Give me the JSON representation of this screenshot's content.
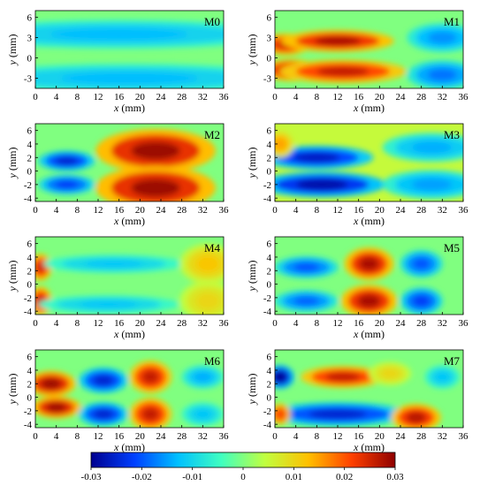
{
  "chart_data": {
    "type": "heatmap",
    "panel_labels": [
      "M0",
      "M1",
      "M2",
      "M3",
      "M4",
      "M5",
      "M6",
      "M7"
    ],
    "xlabel": "x (mm)",
    "ylabel": "y (mm)",
    "x_ticks": [
      0,
      4,
      8,
      12,
      16,
      20,
      24,
      28,
      32,
      36
    ],
    "y_ticks_set_a": [
      6,
      3,
      0,
      -3
    ],
    "y_ticks_set_b": [
      6,
      4,
      2,
      0,
      -2,
      -4
    ],
    "xlim": [
      0,
      36
    ],
    "ylim": [
      -4.5,
      7
    ],
    "colorbar": {
      "ticks": [
        -0.03,
        -0.02,
        -0.01,
        0,
        0.01,
        0.02,
        0.03
      ],
      "tick_labels": [
        "-0.03",
        "-0.02",
        "-0.01",
        "0",
        "0.01",
        "0.02",
        "0.03"
      ],
      "range": [
        -0.03,
        0.03
      ],
      "colormap": [
        "#00008f",
        "#0040ff",
        "#00c0ff",
        "#40ffc0",
        "#c0ff40",
        "#ffc000",
        "#ff4000",
        "#8f0000"
      ]
    },
    "panels": [
      {
        "label": "M0",
        "background": 0.0,
        "blobs": [
          {
            "x": 16,
            "y": 3.5,
            "rx": 24,
            "ry": 1.6,
            "v": -0.013
          },
          {
            "x": 18,
            "y": -3.0,
            "rx": 24,
            "ry": 1.6,
            "v": -0.013
          }
        ]
      },
      {
        "label": "M1",
        "background": 0.0,
        "blobs": [
          {
            "x": 2,
            "y": 2.0,
            "rx": 3.5,
            "ry": 1.2,
            "v": 0.025
          },
          {
            "x": 12,
            "y": 2.5,
            "rx": 8,
            "ry": 1.2,
            "v": 0.028
          },
          {
            "x": 3,
            "y": -1.8,
            "rx": 4,
            "ry": 1.2,
            "v": 0.028
          },
          {
            "x": 13,
            "y": -2.0,
            "rx": 9,
            "ry": 1.3,
            "v": 0.026
          },
          {
            "x": 32,
            "y": 3.0,
            "rx": 5,
            "ry": 1.6,
            "v": -0.016
          },
          {
            "x": 32,
            "y": -2.5,
            "rx": 5,
            "ry": 1.6,
            "v": -0.018
          }
        ]
      },
      {
        "label": "M2",
        "background": 0.0,
        "blobs": [
          {
            "x": 6,
            "y": 1.5,
            "rx": 4,
            "ry": 1.1,
            "v": -0.025
          },
          {
            "x": 6,
            "y": -2.0,
            "rx": 4,
            "ry": 1.1,
            "v": -0.022
          },
          {
            "x": 23,
            "y": 3.0,
            "rx": 8.5,
            "ry": 2.4,
            "v": 0.029
          },
          {
            "x": 23,
            "y": -2.5,
            "rx": 8.5,
            "ry": 2.4,
            "v": 0.029
          }
        ]
      },
      {
        "label": "M3",
        "background": 0.005,
        "blobs": [
          {
            "x": 8,
            "y": 2.0,
            "rx": 8,
            "ry": 1.3,
            "v": -0.026
          },
          {
            "x": 9,
            "y": -2.0,
            "rx": 9,
            "ry": 1.4,
            "v": -0.028
          },
          {
            "x": 30,
            "y": 3.5,
            "rx": 7,
            "ry": 1.6,
            "v": -0.014
          },
          {
            "x": 30,
            "y": -2.0,
            "rx": 7,
            "ry": 1.6,
            "v": -0.015
          },
          {
            "x": 1,
            "y": 4.0,
            "rx": 2,
            "ry": 1.5,
            "v": 0.015
          }
        ]
      },
      {
        "label": "M4",
        "background": 0.0,
        "blobs": [
          {
            "x": 1,
            "y": 2.5,
            "rx": 1.6,
            "ry": 1.5,
            "v": 0.025
          },
          {
            "x": 1,
            "y": -2.5,
            "rx": 1.6,
            "ry": 1.6,
            "v": 0.026
          },
          {
            "x": 15,
            "y": 3.0,
            "rx": 10,
            "ry": 1.0,
            "v": -0.012
          },
          {
            "x": 14,
            "y": -3.0,
            "rx": 10,
            "ry": 1.0,
            "v": -0.012
          },
          {
            "x": 33,
            "y": 3.0,
            "rx": 4,
            "ry": 2.2,
            "v": 0.012
          },
          {
            "x": 33,
            "y": -2.5,
            "rx": 4,
            "ry": 2.2,
            "v": 0.01
          }
        ]
      },
      {
        "label": "M5",
        "background": 0.0,
        "blobs": [
          {
            "x": 6,
            "y": 2.5,
            "rx": 4.5,
            "ry": 1.2,
            "v": -0.02
          },
          {
            "x": 6,
            "y": -2.5,
            "rx": 4.5,
            "ry": 1.2,
            "v": -0.019
          },
          {
            "x": 18,
            "y": 3.0,
            "rx": 3.5,
            "ry": 1.8,
            "v": 0.028
          },
          {
            "x": 18,
            "y": -2.5,
            "rx": 4,
            "ry": 1.8,
            "v": 0.028
          },
          {
            "x": 28,
            "y": 3.0,
            "rx": 3,
            "ry": 1.5,
            "v": -0.02
          },
          {
            "x": 28,
            "y": -2.5,
            "rx": 3,
            "ry": 1.5,
            "v": -0.022
          }
        ]
      },
      {
        "label": "M6",
        "background": 0.0,
        "blobs": [
          {
            "x": 3,
            "y": 2.0,
            "rx": 3.5,
            "ry": 1.4,
            "v": 0.029
          },
          {
            "x": 4,
            "y": -1.5,
            "rx": 3.5,
            "ry": 1.2,
            "v": 0.029
          },
          {
            "x": 13,
            "y": 2.5,
            "rx": 3.5,
            "ry": 1.4,
            "v": -0.025
          },
          {
            "x": 13,
            "y": -2.5,
            "rx": 3.5,
            "ry": 1.3,
            "v": -0.025
          },
          {
            "x": 22,
            "y": 3.0,
            "rx": 3,
            "ry": 1.8,
            "v": 0.026
          },
          {
            "x": 22,
            "y": -2.5,
            "rx": 3,
            "ry": 1.8,
            "v": 0.026
          },
          {
            "x": 32,
            "y": 3.0,
            "rx": 3,
            "ry": 1.3,
            "v": -0.014
          },
          {
            "x": 32,
            "y": -2.5,
            "rx": 3,
            "ry": 1.3,
            "v": -0.012
          }
        ]
      },
      {
        "label": "M7",
        "background": 0.0,
        "blobs": [
          {
            "x": 1,
            "y": 3.0,
            "rx": 2,
            "ry": 1.3,
            "v": -0.03
          },
          {
            "x": 13,
            "y": 3.0,
            "rx": 6,
            "ry": 1.2,
            "v": 0.026
          },
          {
            "x": 22,
            "y": 3.5,
            "rx": 3,
            "ry": 1.3,
            "v": 0.01
          },
          {
            "x": 12,
            "y": -2.5,
            "rx": 10,
            "ry": 1.3,
            "v": -0.025
          },
          {
            "x": 1,
            "y": -2.5,
            "rx": 1.5,
            "ry": 1.2,
            "v": 0.022
          },
          {
            "x": 27,
            "y": -3.0,
            "rx": 3.5,
            "ry": 1.5,
            "v": 0.027
          },
          {
            "x": 32,
            "y": 3.0,
            "rx": 2.5,
            "ry": 1.3,
            "v": -0.012
          }
        ]
      }
    ]
  }
}
